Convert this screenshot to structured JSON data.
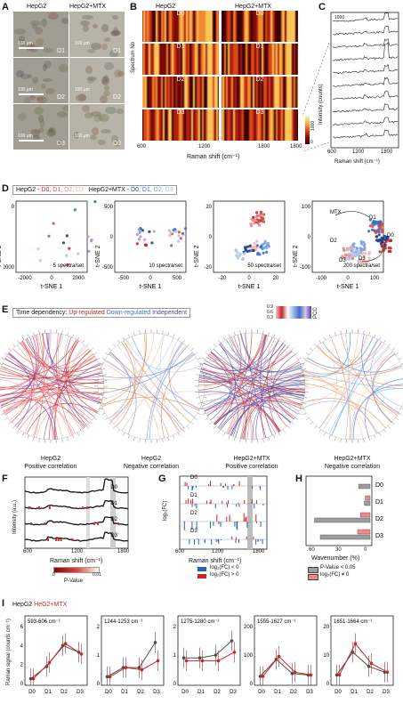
{
  "panels": {
    "A": "A",
    "B": "B",
    "C": "C",
    "D": "D",
    "E": "E",
    "F": "F",
    "G": "G",
    "H": "H",
    "I": "I"
  },
  "panel_a": {
    "col_headers": [
      "HepG2",
      "HepG2+MTX"
    ],
    "day_labels": [
      "D1",
      "D2",
      "D3"
    ],
    "scale_label": "100 μm"
  },
  "panel_b": {
    "col_headers": [
      "HepG2",
      "HepG2+MTX"
    ],
    "row_labels": [
      "D0",
      "D1",
      "D2",
      "D3"
    ],
    "ylabel": "Spectrum No",
    "xlabel": "Raman shift (cm⁻¹)",
    "xticks": [
      "600",
      "1200",
      "1800"
    ],
    "colorbar_max": "1000",
    "colorbar_min": "0"
  },
  "panel_c": {
    "ylabel": "Intensity (counts)",
    "xlabel": "Raman shift (cm⁻¹)",
    "xticks": [
      "600",
      "1200",
      "1800"
    ],
    "scale": "1000"
  },
  "panel_d": {
    "legend_prefix_1": "HepG2 - ",
    "legend_prefix_2": "HepG2+MTX - ",
    "days": [
      "D0,",
      "D1,",
      "D2,",
      "D3"
    ],
    "xlabel": "t-SNE 1",
    "ylabel": "t-SNE 2",
    "subplots": [
      {
        "note": "5 spectra/set",
        "xticks": [
          "-2000",
          "0",
          "2000"
        ],
        "yticks": [
          "0",
          "-2000"
        ]
      },
      {
        "note": "10 spectra/set",
        "xticks": [
          "-500",
          "0",
          "500"
        ],
        "yticks": [
          "500",
          "0",
          "-500"
        ]
      },
      {
        "note": "50 spectra/set",
        "xticks": [
          "-20",
          "0",
          "20"
        ],
        "yticks": [
          "20",
          "0",
          "-20"
        ]
      },
      {
        "note": "200 spectra/set",
        "xticks": [
          "-100",
          "0",
          "100"
        ],
        "yticks": [
          "100",
          "0",
          "-100"
        ],
        "annot": [
          "MTX",
          "D1",
          "D0",
          "D2",
          "D3",
          "D3"
        ]
      }
    ]
  },
  "panel_e": {
    "legend_title": "Time dependency:",
    "up": "Up-regulated",
    "down": "Down-regulated",
    "indep": "Independent",
    "pcc": "PCC",
    "pcc_ticks": [
      "0.9",
      "0.6",
      "0.3"
    ],
    "captions": [
      [
        "HepG2",
        "Positive correlation"
      ],
      [
        "HepG2",
        "Negative correlation"
      ],
      [
        "HepG2+MTX",
        "Positive correlation"
      ],
      [
        "HepG2+MTX",
        "Negative correlation"
      ]
    ]
  },
  "panel_f": {
    "ylabel": "Intensity (a.u.)",
    "xlabel": "Raman shift (cm⁻¹)",
    "xticks": [
      "600",
      "1200",
      "1800"
    ],
    "rows": [
      "D0",
      "D1",
      "D2",
      "D3"
    ],
    "pv_label": "P-Value",
    "pv_min": "0",
    "pv_max": "0.01"
  },
  "panel_g": {
    "ylabel": "log₂(FC)",
    "xlabel": "Raman shift (cm⁻¹)",
    "xticks": [
      "600",
      "1200",
      "1800"
    ],
    "rows": [
      "D0",
      "D1",
      "D2",
      "D3"
    ],
    "leg_neg": "log₂(FC) < 0",
    "leg_pos": "log₂(FC) > 0"
  },
  "panel_h": {
    "xlabel": "Wavenumber (%)",
    "xticks": [
      "60",
      "30",
      "0"
    ],
    "rows": [
      "D0",
      "D1",
      "D2",
      "D3"
    ],
    "leg_gray": "P-Value < 0.05",
    "leg_pink": "log₂(FC) ≠ 0",
    "bars_gray": [
      12,
      6,
      58,
      52
    ],
    "bars_pink": [
      0,
      5,
      10,
      13
    ]
  },
  "panel_i": {
    "legend_a": "HepG2",
    "legend_b": "HeG2+MTX",
    "ylabel": "Raman signal (counts cm⁻¹)",
    "xticks": [
      "D0",
      "D1",
      "D2",
      "D3"
    ],
    "subplots": [
      {
        "title": "593-606 cm⁻¹",
        "yticks": [
          "6",
          "4",
          "2",
          "0"
        ],
        "ymax": 6,
        "gray": [
          0.5,
          1.8,
          4.0,
          3.3
        ],
        "red": [
          0.5,
          2.2,
          4.2,
          3.1
        ]
      },
      {
        "title": "1244-1253 cm⁻¹",
        "yticks": [
          "2",
          "1",
          "0"
        ],
        "ymax": 2.5,
        "gray": [
          0.3,
          0.7,
          0.7,
          1.8
        ],
        "red": [
          0.3,
          0.7,
          0.6,
          1.0
        ]
      },
      {
        "title": "1275-1280 cm⁻¹",
        "yticks": [
          "2",
          "1",
          "0"
        ],
        "ymax": 2,
        "gray": [
          0.9,
          0.9,
          1.0,
          1.5
        ],
        "red": [
          0.8,
          0.8,
          0.8,
          1.1
        ]
      },
      {
        "title": "1555-1627 cm⁻¹",
        "yticks": [
          "200",
          "100",
          "0"
        ],
        "ymax": 200,
        "gray": [
          25,
          85,
          35,
          30
        ],
        "red": [
          25,
          95,
          40,
          30
        ]
      },
      {
        "title": "1651-1664 cm⁻¹",
        "yticks": [
          "20",
          "10",
          "0"
        ],
        "ymax": 20,
        "gray": [
          3,
          11,
          6,
          4
        ],
        "red": [
          3,
          14,
          7,
          4
        ]
      }
    ]
  },
  "colors": {
    "hepg2": "#c62828",
    "mtx": "#3d6fc4",
    "gray": "#4d4d4d",
    "pink": "#ef8a8a"
  }
}
